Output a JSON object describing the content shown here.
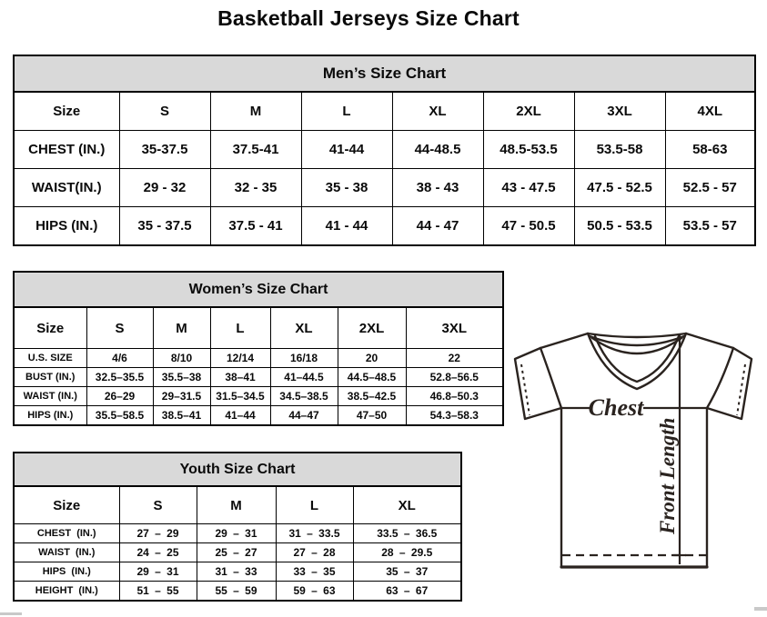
{
  "page": {
    "title": "Basketball Jerseys Size Chart"
  },
  "colors": {
    "table_header_bg": "#d9d9d9",
    "table_border": "#000000",
    "text": "#0a0a0a",
    "diagram_line": "#2a231f"
  },
  "mens_chart": {
    "title": "Men’s Size Chart",
    "columns": [
      "Size",
      "S",
      "M",
      "L",
      "XL",
      "2XL",
      "3XL",
      "4XL"
    ],
    "rows": [
      {
        "label": "CHEST (IN.)",
        "values": [
          "35-37.5",
          "37.5-41",
          "41-44",
          "44-48.5",
          "48.5-53.5",
          "53.5-58",
          "58-63"
        ]
      },
      {
        "label": "WAIST(IN.)",
        "values": [
          "29 - 32",
          "32 - 35",
          "35 - 38",
          "38 - 43",
          "43 - 47.5",
          "47.5 - 52.5",
          "52.5 - 57"
        ]
      },
      {
        "label": "HIPS (IN.)",
        "values": [
          "35 - 37.5",
          "37.5 - 41",
          "41 - 44",
          "44 - 47",
          "47 - 50.5",
          "50.5 - 53.5",
          "53.5 - 57"
        ]
      }
    ]
  },
  "womens_chart": {
    "title": "Women’s Size Chart",
    "columns": [
      "Size",
      "S",
      "M",
      "L",
      "XL",
      "2XL",
      "3XL"
    ],
    "rows": [
      {
        "label": "U.S. SIZE",
        "values": [
          "4/6",
          "8/10",
          "12/14",
          "16/18",
          "20",
          "22"
        ]
      },
      {
        "label": "BUST (IN.)",
        "values": [
          "32.5–35.5",
          "35.5–38",
          "38–41",
          "41–44.5",
          "44.5–48.5",
          "52.8–56.5"
        ]
      },
      {
        "label": "WAIST (IN.)",
        "values": [
          "26–29",
          "29–31.5",
          "31.5–34.5",
          "34.5–38.5",
          "38.5–42.5",
          "46.8–50.3"
        ]
      },
      {
        "label": "HIPS (IN.)",
        "values": [
          "35.5–58.5",
          "38.5–41",
          "41–44",
          "44–47",
          "47–50",
          "54.3–58.3"
        ]
      }
    ]
  },
  "youth_chart": {
    "title": "Youth Size Chart",
    "columns": [
      "Size",
      "S",
      "M",
      "L",
      "XL"
    ],
    "rows": [
      {
        "label": "CHEST (IN.)",
        "values": [
          "27 – 29",
          "29 – 31",
          "31 – 33.5",
          "33.5 – 36.5"
        ]
      },
      {
        "label": "WAIST (IN.)",
        "values": [
          "24 – 25",
          "25 – 27",
          "27 – 28",
          "28 – 29.5"
        ]
      },
      {
        "label": "HIPS (IN.)",
        "values": [
          "29 – 31",
          "31 – 33",
          "33 – 35",
          "35 – 37"
        ]
      },
      {
        "label": "HEIGHT (IN.)",
        "values": [
          "51 – 55",
          "55 – 59",
          "59 – 63",
          "63 – 67"
        ]
      }
    ]
  },
  "diagram": {
    "chest_label": "Chest",
    "front_length_label": "Front Length"
  }
}
